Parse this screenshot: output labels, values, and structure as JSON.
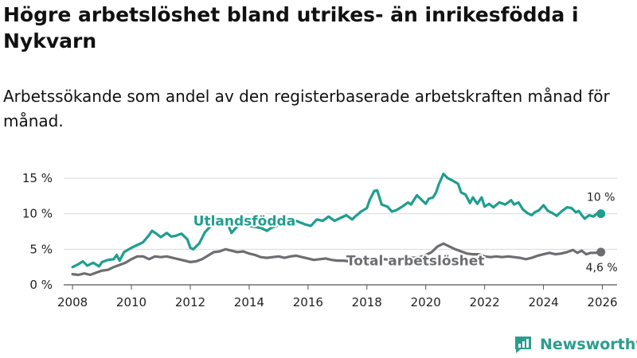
{
  "header": {
    "title": "Högre arbetslöshet bland utrikes- än inrikesfödda i Nykvarn",
    "subtitle": "Arbetssökande som andel av den registerbaserade arbetskraften månad för månad."
  },
  "brand": {
    "name": "Newsworthy"
  },
  "colors": {
    "utlandsfodda": "#1f9e8f",
    "total": "#6d6e71",
    "grid": "#d9d9d9"
  },
  "chart_data": {
    "type": "line",
    "title": "Högre arbetslöshet bland utrikes- än inrikesfödda i Nykvarn",
    "xlabel": "",
    "ylabel": "",
    "xlim": [
      2007.7,
      2026.5
    ],
    "ylim": [
      0,
      15
    ],
    "xticks": [
      2008,
      2010,
      2012,
      2014,
      2016,
      2018,
      2020,
      2022,
      2024,
      2026
    ],
    "xtick_labels": [
      "2008",
      "2010",
      "2012",
      "2014",
      "2016",
      "2018",
      "2020",
      "2022",
      "2024",
      "2026"
    ],
    "yticks": [
      0,
      5,
      10,
      15
    ],
    "ytick_labels": [
      "0 %",
      "5 %",
      "10 %",
      "15 %"
    ],
    "series": [
      {
        "name": "Utlandsfödda",
        "end_label": "10 %",
        "points": [
          [
            2008.0,
            2.5
          ],
          [
            2008.2,
            2.9
          ],
          [
            2008.35,
            3.3
          ],
          [
            2008.5,
            2.7
          ],
          [
            2008.7,
            3.1
          ],
          [
            2008.9,
            2.6
          ],
          [
            2009.0,
            3.2
          ],
          [
            2009.2,
            3.5
          ],
          [
            2009.4,
            3.6
          ],
          [
            2009.5,
            4.2
          ],
          [
            2009.6,
            3.4
          ],
          [
            2009.75,
            4.6
          ],
          [
            2010.0,
            5.2
          ],
          [
            2010.2,
            5.6
          ],
          [
            2010.4,
            6.0
          ],
          [
            2010.6,
            7.0
          ],
          [
            2010.7,
            7.6
          ],
          [
            2010.85,
            7.2
          ],
          [
            2011.0,
            6.7
          ],
          [
            2011.2,
            7.3
          ],
          [
            2011.35,
            6.8
          ],
          [
            2011.5,
            6.9
          ],
          [
            2011.7,
            7.2
          ],
          [
            2011.9,
            6.4
          ],
          [
            2012.0,
            5.2
          ],
          [
            2012.1,
            5.0
          ],
          [
            2012.3,
            5.8
          ],
          [
            2012.5,
            7.4
          ],
          [
            2012.7,
            8.3
          ],
          [
            2012.9,
            8.4
          ],
          [
            2013.1,
            8.5
          ],
          [
            2013.3,
            8.3
          ],
          [
            2013.4,
            7.3
          ],
          [
            2013.55,
            8.0
          ],
          [
            2013.7,
            8.6
          ],
          [
            2013.9,
            8.4
          ],
          [
            2014.1,
            8.2
          ],
          [
            2014.4,
            8.0
          ],
          [
            2014.6,
            7.6
          ],
          [
            2014.75,
            8.0
          ],
          [
            2015.0,
            8.4
          ],
          [
            2015.3,
            8.6
          ],
          [
            2015.6,
            9.0
          ],
          [
            2015.9,
            8.5
          ],
          [
            2016.1,
            8.3
          ],
          [
            2016.3,
            9.2
          ],
          [
            2016.5,
            9.0
          ],
          [
            2016.7,
            9.6
          ],
          [
            2016.9,
            9.0
          ],
          [
            2017.1,
            9.4
          ],
          [
            2017.3,
            9.8
          ],
          [
            2017.5,
            9.2
          ],
          [
            2017.6,
            9.6
          ],
          [
            2017.8,
            10.3
          ],
          [
            2018.0,
            10.8
          ],
          [
            2018.1,
            12.0
          ],
          [
            2018.25,
            13.2
          ],
          [
            2018.35,
            13.3
          ],
          [
            2018.5,
            11.3
          ],
          [
            2018.7,
            11.0
          ],
          [
            2018.85,
            10.3
          ],
          [
            2019.0,
            10.5
          ],
          [
            2019.2,
            11.0
          ],
          [
            2019.4,
            11.6
          ],
          [
            2019.5,
            11.3
          ],
          [
            2019.7,
            12.6
          ],
          [
            2019.9,
            11.8
          ],
          [
            2020.0,
            11.4
          ],
          [
            2020.1,
            12.1
          ],
          [
            2020.25,
            12.3
          ],
          [
            2020.35,
            13.0
          ],
          [
            2020.45,
            14.2
          ],
          [
            2020.6,
            15.6
          ],
          [
            2020.75,
            15.0
          ],
          [
            2020.9,
            14.7
          ],
          [
            2021.1,
            14.2
          ],
          [
            2021.2,
            13.0
          ],
          [
            2021.35,
            12.7
          ],
          [
            2021.5,
            11.5
          ],
          [
            2021.6,
            12.3
          ],
          [
            2021.75,
            11.4
          ],
          [
            2021.9,
            12.3
          ],
          [
            2022.0,
            11.0
          ],
          [
            2022.15,
            11.4
          ],
          [
            2022.3,
            10.9
          ],
          [
            2022.5,
            11.6
          ],
          [
            2022.7,
            11.3
          ],
          [
            2022.9,
            11.9
          ],
          [
            2023.0,
            11.3
          ],
          [
            2023.15,
            11.6
          ],
          [
            2023.3,
            10.6
          ],
          [
            2023.45,
            10.1
          ],
          [
            2023.6,
            9.8
          ],
          [
            2023.7,
            10.2
          ],
          [
            2023.85,
            10.5
          ],
          [
            2024.0,
            11.2
          ],
          [
            2024.15,
            10.4
          ],
          [
            2024.3,
            10.1
          ],
          [
            2024.45,
            9.7
          ],
          [
            2024.6,
            10.3
          ],
          [
            2024.8,
            10.9
          ],
          [
            2024.95,
            10.8
          ],
          [
            2025.1,
            10.2
          ],
          [
            2025.2,
            10.4
          ],
          [
            2025.3,
            9.8
          ],
          [
            2025.4,
            9.3
          ],
          [
            2025.55,
            9.8
          ],
          [
            2025.7,
            9.6
          ],
          [
            2025.8,
            10.0
          ],
          [
            2025.95,
            10.0
          ]
        ]
      },
      {
        "name": "Total arbetslöshet",
        "end_label": "4,6 %",
        "points": [
          [
            2008.0,
            1.5
          ],
          [
            2008.2,
            1.4
          ],
          [
            2008.4,
            1.6
          ],
          [
            2008.6,
            1.4
          ],
          [
            2008.8,
            1.7
          ],
          [
            2009.0,
            2.0
          ],
          [
            2009.2,
            2.1
          ],
          [
            2009.4,
            2.5
          ],
          [
            2009.6,
            2.8
          ],
          [
            2009.8,
            3.1
          ],
          [
            2010.0,
            3.6
          ],
          [
            2010.2,
            4.0
          ],
          [
            2010.4,
            4.0
          ],
          [
            2010.6,
            3.6
          ],
          [
            2010.8,
            4.0
          ],
          [
            2011.0,
            3.9
          ],
          [
            2011.2,
            4.0
          ],
          [
            2011.4,
            3.8
          ],
          [
            2011.6,
            3.6
          ],
          [
            2011.8,
            3.4
          ],
          [
            2012.0,
            3.2
          ],
          [
            2012.2,
            3.3
          ],
          [
            2012.4,
            3.6
          ],
          [
            2012.6,
            4.1
          ],
          [
            2012.8,
            4.6
          ],
          [
            2013.0,
            4.7
          ],
          [
            2013.2,
            5.0
          ],
          [
            2013.4,
            4.8
          ],
          [
            2013.6,
            4.6
          ],
          [
            2013.8,
            4.7
          ],
          [
            2014.0,
            4.4
          ],
          [
            2014.2,
            4.2
          ],
          [
            2014.4,
            3.9
          ],
          [
            2014.6,
            3.8
          ],
          [
            2014.8,
            3.9
          ],
          [
            2015.0,
            4.0
          ],
          [
            2015.2,
            3.8
          ],
          [
            2015.4,
            4.0
          ],
          [
            2015.6,
            4.1
          ],
          [
            2015.8,
            3.9
          ],
          [
            2016.0,
            3.7
          ],
          [
            2016.2,
            3.5
          ],
          [
            2016.4,
            3.6
          ],
          [
            2016.6,
            3.7
          ],
          [
            2016.8,
            3.5
          ],
          [
            2017.0,
            3.4
          ],
          [
            2017.2,
            3.4
          ],
          [
            2017.4,
            3.3
          ],
          [
            2017.6,
            3.3
          ],
          [
            2017.8,
            3.4
          ],
          [
            2018.0,
            3.4
          ],
          [
            2018.2,
            3.5
          ],
          [
            2018.4,
            3.6
          ],
          [
            2018.6,
            3.6
          ],
          [
            2018.8,
            3.5
          ],
          [
            2019.0,
            3.7
          ],
          [
            2019.2,
            3.8
          ],
          [
            2019.4,
            3.9
          ],
          [
            2019.6,
            3.8
          ],
          [
            2019.8,
            3.9
          ],
          [
            2020.0,
            4.2
          ],
          [
            2020.2,
            4.6
          ],
          [
            2020.4,
            5.4
          ],
          [
            2020.6,
            5.8
          ],
          [
            2020.8,
            5.4
          ],
          [
            2021.0,
            5.0
          ],
          [
            2021.2,
            4.7
          ],
          [
            2021.4,
            4.4
          ],
          [
            2021.6,
            4.3
          ],
          [
            2021.8,
            4.3
          ],
          [
            2022.0,
            4.0
          ],
          [
            2022.2,
            3.9
          ],
          [
            2022.4,
            4.0
          ],
          [
            2022.6,
            3.9
          ],
          [
            2022.8,
            4.0
          ],
          [
            2023.0,
            3.9
          ],
          [
            2023.2,
            3.8
          ],
          [
            2023.4,
            3.6
          ],
          [
            2023.6,
            3.8
          ],
          [
            2023.8,
            4.1
          ],
          [
            2024.0,
            4.3
          ],
          [
            2024.2,
            4.5
          ],
          [
            2024.4,
            4.3
          ],
          [
            2024.6,
            4.4
          ],
          [
            2024.8,
            4.6
          ],
          [
            2025.0,
            4.9
          ],
          [
            2025.15,
            4.5
          ],
          [
            2025.3,
            4.8
          ],
          [
            2025.45,
            4.3
          ],
          [
            2025.6,
            4.5
          ],
          [
            2025.75,
            4.5
          ],
          [
            2025.95,
            4.6
          ]
        ]
      }
    ]
  }
}
